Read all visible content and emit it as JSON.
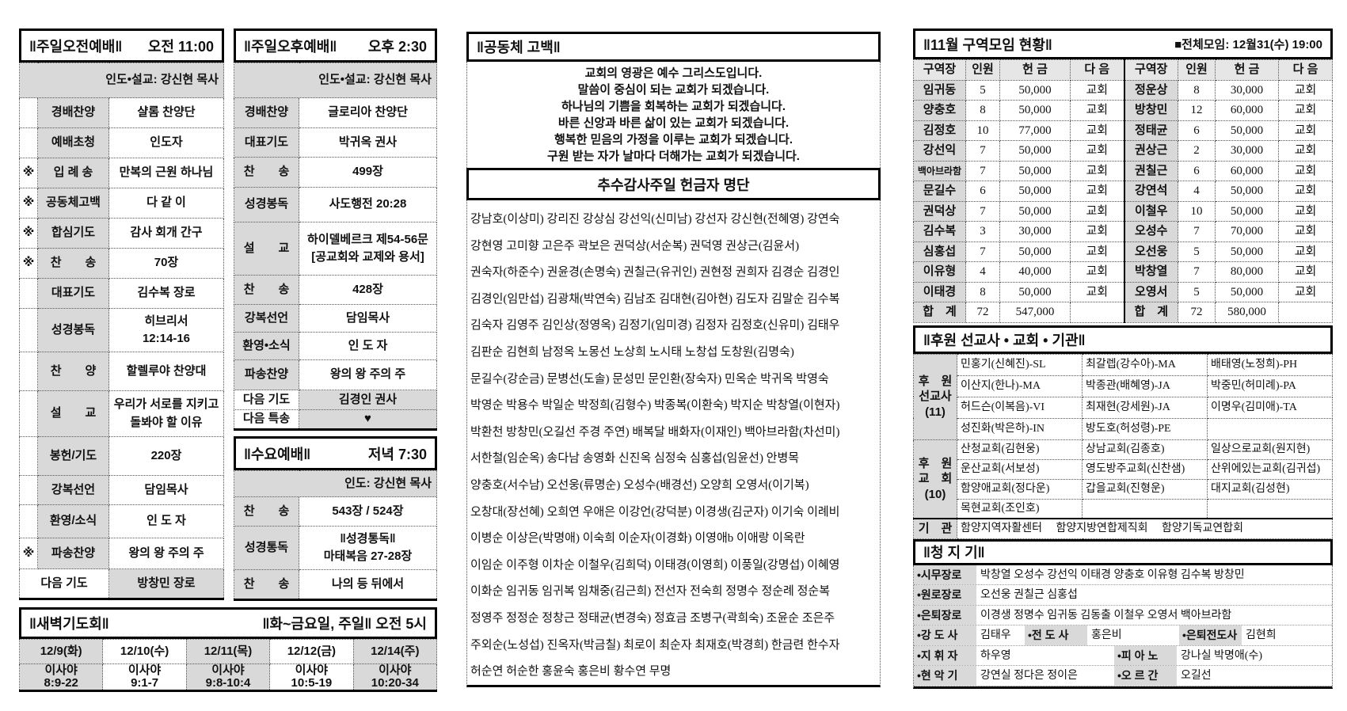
{
  "morning": {
    "title": "‖주일오전예배‖",
    "time": "오전 11:00",
    "leader": "인도•설교: 강신현 목사",
    "rows": [
      {
        "mark": "",
        "label": "경배찬양",
        "value": "샬롬 찬양단"
      },
      {
        "mark": "",
        "label": "예배초청",
        "value": "인도자"
      },
      {
        "mark": "※",
        "label": "입 례 송",
        "value": "만복의 근원 하나님"
      },
      {
        "mark": "※",
        "label": "공동체고백",
        "value": "다 같 이"
      },
      {
        "mark": "※",
        "label": "합심기도",
        "value": "감사 회개 간구"
      },
      {
        "mark": "※",
        "label": "찬　　송",
        "value": "70장"
      },
      {
        "mark": "",
        "label": "대표기도",
        "value": "김수복 장로"
      },
      {
        "mark": "",
        "label": "성경봉독",
        "value": "히브리서\n12:14-16"
      },
      {
        "mark": "",
        "label": "찬　　양",
        "value": "할렐루야 찬양대"
      },
      {
        "mark": "",
        "label": "설　　교",
        "value": "우리가 서로를 지키고\n돌봐야 할 이유"
      },
      {
        "mark": "",
        "label": "봉헌/기도",
        "value": "220장"
      },
      {
        "mark": "",
        "label": "강복선언",
        "value": "담임목사"
      },
      {
        "mark": "",
        "label": "환영/소식",
        "value": "인 도 자"
      },
      {
        "mark": "※",
        "label": "파송찬양",
        "value": "왕의 왕 주의 주"
      }
    ],
    "next_prayer_label": "다음 기도",
    "next_prayer": "방창민 장로"
  },
  "afternoon": {
    "title": "‖주일오후예배‖",
    "time": "오후 2:30",
    "leader": "인도•설교: 강신현 목사",
    "rows": [
      {
        "label": "경배찬양",
        "value": "글로리아 찬양단"
      },
      {
        "label": "대표기도",
        "value": "박귀옥 권사"
      },
      {
        "label": "찬　　송",
        "value": "499장"
      },
      {
        "label": "성경봉독",
        "value": "사도행전 20:28"
      },
      {
        "label": "설　　교",
        "value": "하이델베르크 제54-56문\n[공교회와 교제와 용서]"
      },
      {
        "label": "찬　　송",
        "value": "428장"
      },
      {
        "label": "강복선언",
        "value": "담임목사"
      },
      {
        "label": "환영•소식",
        "value": "인 도 자"
      },
      {
        "label": "파송찬양",
        "value": "왕의 왕 주의 주"
      }
    ],
    "next": [
      {
        "label": "다음 기도",
        "value": "김경인 권사"
      },
      {
        "label": "다음 특송",
        "value": "♥"
      }
    ]
  },
  "wednesday": {
    "title": "‖수요예배‖",
    "time": "저녁 7:30",
    "leader": "인도: 강신현 목사",
    "rows": [
      {
        "label": "찬　　송",
        "value": "543장 / 524장"
      },
      {
        "label": "성경통독",
        "value": "‖성경통독‖\n마태복음 27-28장"
      },
      {
        "label": "찬　　송",
        "value": "나의 등 뒤에서"
      }
    ]
  },
  "dawn": {
    "title": "‖새벽기도회‖",
    "schedule": "‖화~금요일, 주일‖  오전 5시",
    "days": [
      {
        "date": "12/9(화)",
        "reading": "이사야\n8:9-22"
      },
      {
        "date": "12/10(수)",
        "reading": "이사야\n9:1-7"
      },
      {
        "date": "12/11(목)",
        "reading": "이사야\n9:8-10:4"
      },
      {
        "date": "12/12(금)",
        "reading": "이사야\n10:5-19"
      },
      {
        "date": "12/14(주)",
        "reading": "이사야\n10:20-34"
      }
    ]
  },
  "confession": {
    "title": "‖공동체 고백‖",
    "lines": [
      "교회의 영광은 예수 그리스도입니다.",
      "말씀이 중심이 되는 교회가 되겠습니다.",
      "하나님의 기쁨을 회복하는 교회가 되겠습니다.",
      "바른 신앙과 바른 삶이 있는 교회가 되겠습니다.",
      "행복한 믿음의 가정을 이루는 교회가 되겠습니다.",
      "구원 받는 자가 날마다 더해가는 교회가 되겠습니다."
    ]
  },
  "offering": {
    "title": "추수감사주일 헌금자 명단",
    "lines": [
      "강남호(이상미) 강리진 강상심 강선익(신미남) 강선자 강신현(전혜영) 강연숙",
      "강현영 고미향 고은주 곽보은 권덕상(서순복) 권덕영 권상근(김윤서)",
      "권숙자(하준수) 권윤경(손명숙) 권칠근(유귀인) 권현정 권희자 김경순 김경인",
      "김경인(임만섭) 김광채(박연숙) 김남조 김대현(김아현) 김도자 김말순 김수복",
      "김숙자 김영주 김인상(정영옥) 김정기(임미경) 김정자 김정호(신유미) 김태우",
      "김판순 김현희 남정옥 노몽선 노상희 노시태 노창섭 도창원(김명숙)",
      "문길수(강순금) 문병선(도솔) 문성민 문인환(장숙자) 민옥순 박귀옥 박영숙",
      "박영순 박용수 박일순 박정희(김형수) 박종복(이환숙) 박지순 박창열(이현자)",
      "박환천 방창민(오길선 주경 주연) 배복달 배화자(이재인) 백아브라함(차선미)",
      "서한철(임순옥) 송다남 송영화 신진옥 심정숙 심홍섭(임윤선) 안병목",
      "양충호(서수남) 오선웅(류명순) 오성수(배경선) 오양희 오영서(이기복)",
      "오창대(장선혜) 오희연 우애은 이강언(강덕분) 이경생(김군자) 이기숙 이례비",
      "이병순 이상은(박명애) 이숙희 이순자(이경화) 이영애b 이애랑 이옥란",
      "이임순 이주형 이차순 이철우(김희덕) 이태경(이영희) 이풍일(강명섭) 이혜영",
      "이화순 임귀동 임귀복 임채중(김근희) 전선자 전숙희 정명수 정순례 정순복",
      "정영주 정정순 정창근 정태균(변경숙) 정효금 조병구(곽희숙) 조윤순 조은주",
      "주외순(노성섭) 진옥자(박금칠) 최로이 최순자 최재호(박경희) 한금련 한수자",
      "허순연 허순한 홍윤숙 홍은비 황수연 무명"
    ]
  },
  "district": {
    "title": "‖11월 구역모임 현황‖",
    "notice": "■전체모임: 12월31(수) 19:00",
    "headers": [
      "구역장",
      "인원",
      "헌 금",
      "다 음",
      "구역장",
      "인원",
      "헌 금",
      "다 음"
    ],
    "rows": [
      [
        "임귀동",
        "5",
        "50,000",
        "교회",
        "정운상",
        "8",
        "30,000",
        "교회"
      ],
      [
        "양충호",
        "8",
        "50,000",
        "교회",
        "방창민",
        "12",
        "60,000",
        "교회"
      ],
      [
        "김정호",
        "10",
        "77,000",
        "교회",
        "정태균",
        "6",
        "50,000",
        "교회"
      ],
      [
        "강선익",
        "7",
        "50,000",
        "교회",
        "권상근",
        "2",
        "30,000",
        "교회"
      ],
      [
        "백아브라함",
        "7",
        "50,000",
        "교회",
        "권칠근",
        "6",
        "60,000",
        "교회"
      ],
      [
        "문길수",
        "6",
        "50,000",
        "교회",
        "강연석",
        "4",
        "50,000",
        "교회"
      ],
      [
        "권덕상",
        "7",
        "50,000",
        "교회",
        "이철우",
        "10",
        "50,000",
        "교회"
      ],
      [
        "김수복",
        "3",
        "30,000",
        "교회",
        "오성수",
        "7",
        "70,000",
        "교회"
      ],
      [
        "심홍섭",
        "7",
        "50,000",
        "교회",
        "오선웅",
        "5",
        "50,000",
        "교회"
      ],
      [
        "이유형",
        "4",
        "40,000",
        "교회",
        "박창열",
        "7",
        "80,000",
        "교회"
      ],
      [
        "이태경",
        "8",
        "50,000",
        "교회",
        "오영서",
        "5",
        "50,000",
        "교회"
      ],
      [
        "합　계",
        "72",
        "547,000",
        "",
        "합　계",
        "72",
        "580,000",
        ""
      ]
    ]
  },
  "support": {
    "title": "‖후원 선교사 • 교회 • 기관‖",
    "missionaries_label": "후　원\n선교사\n(11)",
    "missionaries": [
      [
        "민홍기(신혜진)-SL",
        "최갈렙(강수아)-MA",
        "배태영(노정희)-PH"
      ],
      [
        "이산지(한나)-MA",
        "박종관(배혜영)-JA",
        "박중민(허미례)-PA"
      ],
      [
        "허드슨(이복음)-VI",
        "최재현(강세원)-JA",
        "이명우(김미애)-TA"
      ],
      [
        "성진화(박은하)-IN",
        "방도호(허성령)-PE",
        ""
      ]
    ],
    "churches_label": "후　원\n교　회\n(10)",
    "churches": [
      [
        "산청교회(김현웅)",
        "상남교회(김종호)",
        "일상으로교회(원지현)"
      ],
      [
        "운산교회(서보성)",
        "영도방주교회(신찬샘)",
        "산위에있는교회(김귀섭)"
      ],
      [
        "함양애교회(정다운)",
        "갑을교회(진형운)",
        "대지교회(김성현)"
      ],
      [
        "목현교회(조인호)",
        "",
        ""
      ]
    ],
    "agencies_label": "기　관",
    "agencies": "함양지역자활센터　 함양지방연합제직회　 함양기독교연합회"
  },
  "stewards": {
    "title": "‖청 지 기‖",
    "rows": [
      [
        {
          "label": "•시무장로",
          "value": "박창열 오성수 강선익 이태경 양충호 이유형 김수복 방창민"
        }
      ],
      [
        {
          "label": "•원로장로",
          "value": "오선웅 권칠근 심홍섭"
        }
      ],
      [
        {
          "label": "•은퇴장로",
          "value": "이경생 정명수 임귀동 김동출 이철우 오영서 백아브라함"
        }
      ],
      [
        {
          "label": "•강 도 사",
          "value": "김태우"
        },
        {
          "label": "•전 도 사",
          "value": "홍은비"
        },
        {
          "label": "•은퇴전도사",
          "value": "김현희"
        }
      ],
      [
        {
          "label": "•지 휘 자",
          "value": "하우영"
        },
        {
          "label": "•피 아 노",
          "value": "강나실 박명애(수)"
        }
      ],
      [
        {
          "label": "•현 악 기",
          "value": "강연실 정다은 정이은"
        },
        {
          "label": "•오 르 간",
          "value": "오길선"
        }
      ]
    ]
  },
  "colors": {
    "label_gray": "#d9d9d9",
    "header_gray": "#e6e6e6",
    "border": "#000000"
  }
}
